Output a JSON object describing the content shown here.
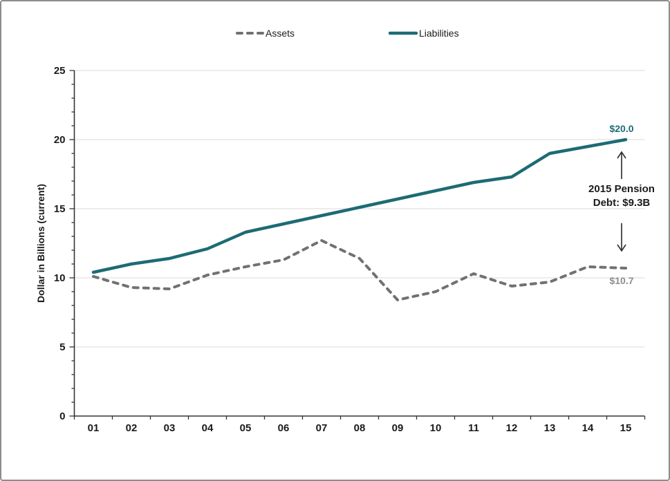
{
  "legend": {
    "assets_label": "Assets",
    "liabilities_label": "Liabilities"
  },
  "y_axis_title": "Dollar in Billions (current)",
  "annotations": {
    "liabilities_end_label": "$20.0",
    "assets_end_label": "$10.7",
    "pension_line1": "2015 Pension",
    "pension_line2": "Debt: $9.3B"
  },
  "colors": {
    "liabilities": "#1d6b75",
    "assets": "#717171",
    "liabilities_value_label": "#1d6b75",
    "assets_value_label": "#8c8c8c",
    "gridline": "#d9d9d9",
    "axis": "#333333",
    "tick_label": "#1a1a1a",
    "annotation_arrow": "#333333",
    "frame_border": "#8c8c8c"
  },
  "chart_data": {
    "type": "line",
    "categories": [
      "01",
      "02",
      "03",
      "04",
      "05",
      "06",
      "07",
      "08",
      "09",
      "10",
      "11",
      "12",
      "13",
      "14",
      "15"
    ],
    "series": [
      {
        "name": "Assets",
        "style": "dashed",
        "color_key": "assets",
        "values": [
          10.1,
          9.3,
          9.2,
          10.2,
          10.8,
          11.3,
          12.7,
          11.4,
          8.4,
          9.0,
          10.3,
          9.4,
          9.7,
          10.8,
          10.7
        ]
      },
      {
        "name": "Liabilities",
        "style": "solid",
        "color_key": "liabilities",
        "values": [
          10.4,
          11.0,
          11.4,
          12.1,
          13.3,
          13.9,
          14.5,
          15.1,
          15.7,
          16.3,
          16.9,
          17.3,
          19.0,
          19.5,
          20.0
        ]
      }
    ],
    "title": "",
    "xlabel": "",
    "ylabel": "Dollar in Billions (current)",
    "ylim": [
      0,
      25
    ],
    "y_ticks": [
      0,
      5,
      10,
      15,
      20,
      25
    ],
    "y_minor_tick_interval": 1,
    "grid": "horizontal-major",
    "legend_position": "top"
  }
}
